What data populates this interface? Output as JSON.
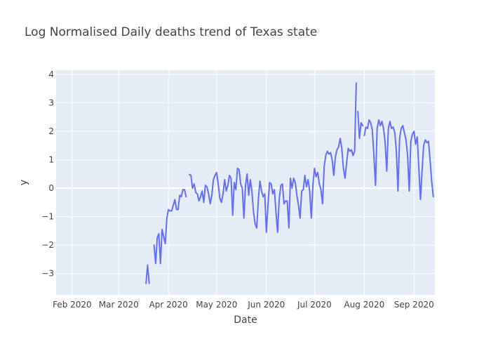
{
  "chart_data": {
    "type": "line",
    "title": "Log Normalised Daily deaths trend of Texas state",
    "xlabel": "Date",
    "ylabel": "y",
    "xlim": [
      "2020-01-22",
      "2020-09-14"
    ],
    "ylim": [
      -3.75,
      4.15
    ],
    "grid": true,
    "legend": false,
    "x_tick_labels": [
      {
        "date": "2020-02-01",
        "label": "Feb 2020"
      },
      {
        "date": "2020-03-01",
        "label": "Mar 2020"
      },
      {
        "date": "2020-04-01",
        "label": "Apr 2020"
      },
      {
        "date": "2020-05-01",
        "label": "May 2020"
      },
      {
        "date": "2020-06-01",
        "label": "Jun 2020"
      },
      {
        "date": "2020-07-01",
        "label": "Jul 2020"
      },
      {
        "date": "2020-08-01",
        "label": "Aug 2020"
      },
      {
        "date": "2020-09-01",
        "label": "Sep 2020"
      }
    ],
    "y_ticks": [
      -3,
      -2,
      -1,
      0,
      1,
      2,
      3,
      4
    ],
    "y_tick_labels": [
      "−3",
      "−2",
      "−1",
      "0",
      "1",
      "2",
      "3",
      "4"
    ],
    "series": [
      {
        "color": "#636efa",
        "points": [
          [
            "2020-03-18",
            -3.35
          ],
          [
            "2020-03-19",
            -2.7
          ],
          [
            "2020-03-20",
            -3.35
          ],
          null,
          [
            "2020-03-23",
            -2.0
          ],
          [
            "2020-03-24",
            -2.65
          ],
          [
            "2020-03-25",
            -1.75
          ],
          [
            "2020-03-26",
            -1.6
          ],
          [
            "2020-03-27",
            -2.65
          ],
          [
            "2020-03-28",
            -1.45
          ],
          [
            "2020-03-29",
            -1.7
          ],
          [
            "2020-03-30",
            -1.95
          ],
          [
            "2020-03-31",
            -1.05
          ],
          [
            "2020-04-01",
            -0.75
          ],
          [
            "2020-04-02",
            -0.8
          ],
          [
            "2020-04-03",
            -0.8
          ],
          [
            "2020-04-04",
            -0.6
          ],
          [
            "2020-04-05",
            -0.4
          ],
          [
            "2020-04-06",
            -0.75
          ],
          [
            "2020-04-07",
            -0.75
          ],
          [
            "2020-04-08",
            -0.25
          ],
          [
            "2020-04-09",
            -0.3
          ],
          [
            "2020-04-10",
            -0.05
          ],
          [
            "2020-04-11",
            -0.05
          ],
          [
            "2020-04-12",
            -0.3
          ],
          null,
          [
            "2020-04-14",
            0.48
          ],
          [
            "2020-04-15",
            0.45
          ],
          [
            "2020-04-16",
            0.0
          ],
          [
            "2020-04-17",
            0.15
          ],
          [
            "2020-04-18",
            -0.15
          ],
          [
            "2020-04-19",
            -0.2
          ],
          [
            "2020-04-20",
            -0.45
          ],
          [
            "2020-04-21",
            -0.3
          ],
          [
            "2020-04-22",
            -0.1
          ],
          [
            "2020-04-23",
            -0.5
          ],
          [
            "2020-04-24",
            0.1
          ],
          [
            "2020-04-25",
            0.05
          ],
          [
            "2020-04-26",
            -0.2
          ],
          [
            "2020-04-27",
            -0.55
          ],
          [
            "2020-04-28",
            -0.25
          ],
          [
            "2020-04-29",
            0.3
          ],
          [
            "2020-04-30",
            0.45
          ],
          [
            "2020-05-01",
            0.55
          ],
          [
            "2020-05-02",
            0.15
          ],
          [
            "2020-05-03",
            -0.35
          ],
          [
            "2020-05-04",
            -0.5
          ],
          [
            "2020-05-05",
            -0.2
          ],
          [
            "2020-05-06",
            0.3
          ],
          [
            "2020-05-07",
            -0.1
          ],
          [
            "2020-05-08",
            0.1
          ],
          [
            "2020-05-09",
            0.45
          ],
          [
            "2020-05-10",
            0.35
          ],
          [
            "2020-05-11",
            -0.95
          ],
          [
            "2020-05-12",
            0.2
          ],
          [
            "2020-05-13",
            -0.05
          ],
          [
            "2020-05-14",
            0.7
          ],
          [
            "2020-05-15",
            0.65
          ],
          [
            "2020-05-16",
            0.15
          ],
          [
            "2020-05-17",
            0.0
          ],
          [
            "2020-05-18",
            -1.05
          ],
          [
            "2020-05-19",
            0.1
          ],
          [
            "2020-05-20",
            0.5
          ],
          [
            "2020-05-21",
            -0.25
          ],
          [
            "2020-05-22",
            0.3
          ],
          [
            "2020-05-23",
            -0.1
          ],
          [
            "2020-05-24",
            -0.85
          ],
          [
            "2020-05-25",
            -1.25
          ],
          [
            "2020-05-26",
            -1.4
          ],
          [
            "2020-05-27",
            -0.4
          ],
          [
            "2020-05-28",
            0.25
          ],
          [
            "2020-05-29",
            -0.1
          ],
          [
            "2020-05-30",
            -0.3
          ],
          [
            "2020-05-31",
            -0.2
          ],
          [
            "2020-06-01",
            -1.55
          ],
          [
            "2020-06-02",
            -0.6
          ],
          [
            "2020-06-03",
            0.2
          ],
          [
            "2020-06-04",
            0.15
          ],
          [
            "2020-06-05",
            -0.2
          ],
          [
            "2020-06-06",
            -0.05
          ],
          [
            "2020-06-07",
            -0.85
          ],
          [
            "2020-06-08",
            -1.55
          ],
          [
            "2020-06-09",
            -0.4
          ],
          [
            "2020-06-10",
            0.1
          ],
          [
            "2020-06-11",
            0.15
          ],
          [
            "2020-06-12",
            -0.55
          ],
          [
            "2020-06-13",
            -0.45
          ],
          [
            "2020-06-14",
            -0.45
          ],
          [
            "2020-06-15",
            -1.4
          ],
          [
            "2020-06-16",
            0.35
          ],
          [
            "2020-06-17",
            0.0
          ],
          [
            "2020-06-18",
            0.35
          ],
          [
            "2020-06-19",
            0.2
          ],
          [
            "2020-06-20",
            -0.25
          ],
          [
            "2020-06-21",
            -0.6
          ],
          [
            "2020-06-22",
            -1.05
          ],
          [
            "2020-06-23",
            -0.1
          ],
          [
            "2020-06-24",
            -0.05
          ],
          [
            "2020-06-25",
            0.45
          ],
          [
            "2020-06-26",
            0.05
          ],
          [
            "2020-06-27",
            0.3
          ],
          [
            "2020-06-28",
            -0.1
          ],
          [
            "2020-06-29",
            -1.05
          ],
          [
            "2020-06-30",
            0.1
          ],
          [
            "2020-07-01",
            0.7
          ],
          [
            "2020-07-02",
            0.4
          ],
          [
            "2020-07-03",
            0.55
          ],
          [
            "2020-07-04",
            0.15
          ],
          [
            "2020-07-05",
            -0.05
          ],
          [
            "2020-07-06",
            -0.55
          ],
          [
            "2020-07-07",
            0.75
          ],
          [
            "2020-07-08",
            1.15
          ],
          [
            "2020-07-09",
            1.3
          ],
          [
            "2020-07-10",
            1.2
          ],
          [
            "2020-07-11",
            1.25
          ],
          [
            "2020-07-12",
            1.0
          ],
          [
            "2020-07-13",
            0.45
          ],
          [
            "2020-07-14",
            1.1
          ],
          [
            "2020-07-15",
            1.35
          ],
          [
            "2020-07-16",
            1.45
          ],
          [
            "2020-07-17",
            1.75
          ],
          [
            "2020-07-18",
            1.4
          ],
          [
            "2020-07-19",
            0.7
          ],
          [
            "2020-07-20",
            0.35
          ],
          [
            "2020-07-21",
            0.9
          ],
          [
            "2020-07-22",
            1.4
          ],
          [
            "2020-07-23",
            1.3
          ],
          [
            "2020-07-24",
            1.35
          ],
          [
            "2020-07-25",
            1.15
          ],
          [
            "2020-07-26",
            1.3
          ],
          [
            "2020-07-27",
            3.7
          ],
          null,
          [
            "2020-07-28",
            2.7
          ],
          [
            "2020-07-29",
            1.75
          ],
          [
            "2020-07-30",
            2.3
          ],
          [
            "2020-07-31",
            2.2
          ],
          null,
          [
            "2020-08-01",
            1.85
          ],
          [
            "2020-08-02",
            2.15
          ],
          [
            "2020-08-03",
            2.1
          ],
          [
            "2020-08-04",
            2.4
          ],
          [
            "2020-08-05",
            2.3
          ],
          [
            "2020-08-06",
            2.05
          ],
          [
            "2020-08-07",
            1.15
          ],
          [
            "2020-08-08",
            0.1
          ],
          [
            "2020-08-09",
            2.1
          ],
          [
            "2020-08-10",
            2.4
          ],
          [
            "2020-08-11",
            2.2
          ],
          [
            "2020-08-12",
            2.35
          ],
          [
            "2020-08-13",
            2.1
          ],
          [
            "2020-08-14",
            1.6
          ],
          [
            "2020-08-15",
            0.6
          ],
          [
            "2020-08-16",
            2.1
          ],
          [
            "2020-08-17",
            2.35
          ],
          [
            "2020-08-18",
            2.1
          ],
          [
            "2020-08-19",
            2.15
          ],
          [
            "2020-08-20",
            1.95
          ],
          [
            "2020-08-21",
            1.3
          ],
          [
            "2020-08-22",
            -0.1
          ],
          [
            "2020-08-23",
            1.75
          ],
          [
            "2020-08-24",
            2.1
          ],
          [
            "2020-08-25",
            2.2
          ],
          [
            "2020-08-26",
            1.95
          ],
          [
            "2020-08-27",
            1.7
          ],
          [
            "2020-08-28",
            1.15
          ],
          [
            "2020-08-29",
            -0.1
          ],
          [
            "2020-08-30",
            1.65
          ],
          [
            "2020-08-31",
            1.9
          ],
          [
            "2020-09-01",
            2.0
          ],
          [
            "2020-09-02",
            1.55
          ],
          [
            "2020-09-03",
            1.8
          ],
          [
            "2020-09-04",
            0.7
          ],
          [
            "2020-09-05",
            -0.4
          ],
          [
            "2020-09-06",
            0.6
          ],
          [
            "2020-09-07",
            1.5
          ],
          [
            "2020-09-08",
            1.7
          ],
          [
            "2020-09-09",
            1.6
          ],
          [
            "2020-09-10",
            1.65
          ],
          [
            "2020-09-11",
            1.0
          ],
          [
            "2020-09-12",
            0.25
          ],
          [
            "2020-09-13",
            -0.3
          ]
        ]
      }
    ]
  }
}
